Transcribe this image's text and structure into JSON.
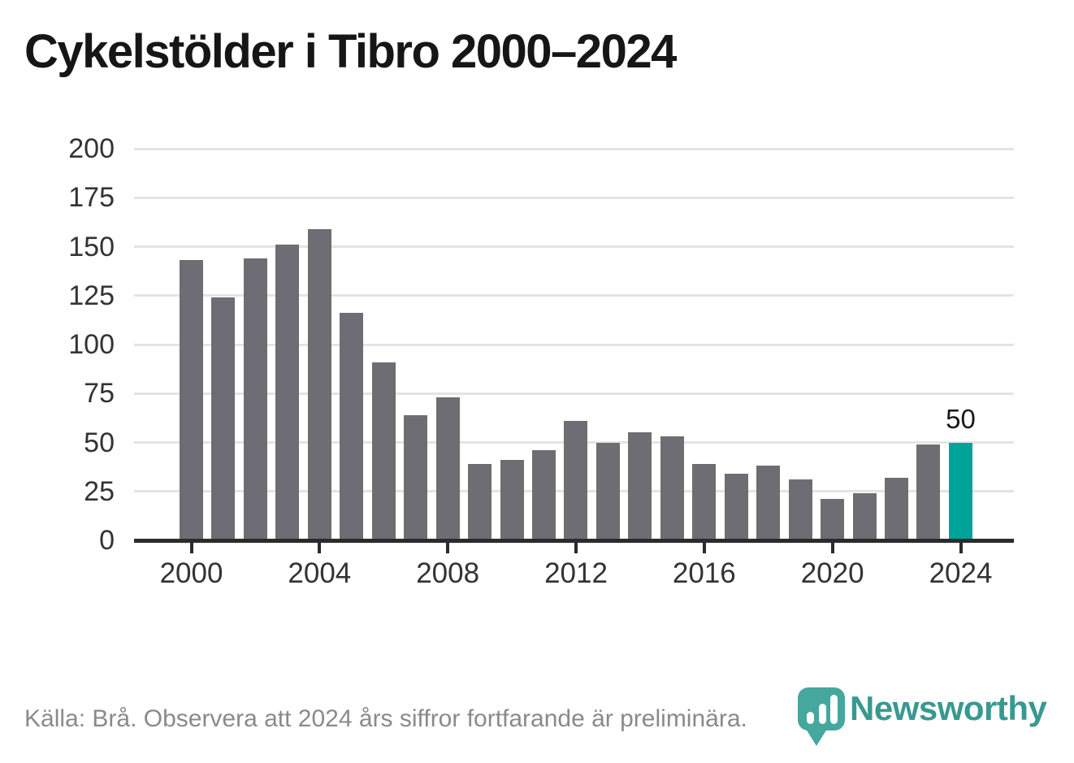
{
  "title": "Cykelstölder i Tibro 2000–2024",
  "footer": {
    "source_text": "Källa: Brå. Observera att 2024 års siffror fortfarande är preliminära."
  },
  "logo": {
    "wordmark": "Newsworthy",
    "badge_color": "#45A79D",
    "wordmark_color": "#38998F"
  },
  "colors": {
    "bar": "#6E6D73",
    "highlight_bar": "#00A39A",
    "axis": "#2B2B2B",
    "gridline": "#E4E4E4",
    "title_text": "#161616",
    "tick_label": "#333333",
    "footer_text": "#8A8A8A"
  },
  "chart_data": {
    "type": "bar",
    "title": "Cykelstölder i Tibro 2000–2024",
    "xlabel": "",
    "ylabel": "",
    "x": [
      2000,
      2001,
      2002,
      2003,
      2004,
      2005,
      2006,
      2007,
      2008,
      2009,
      2010,
      2011,
      2012,
      2013,
      2014,
      2015,
      2016,
      2017,
      2018,
      2019,
      2020,
      2021,
      2022,
      2023,
      2024
    ],
    "values": [
      143,
      124,
      144,
      151,
      159,
      116,
      91,
      64,
      73,
      39,
      41,
      46,
      61,
      50,
      55,
      53,
      39,
      34,
      38,
      31,
      21,
      24,
      32,
      49,
      50
    ],
    "highlight_index": 24,
    "annotation": {
      "index": 24,
      "text": "50"
    },
    "ylim": [
      0,
      200
    ],
    "y_ticks": [
      0,
      25,
      50,
      75,
      100,
      125,
      150,
      175,
      200
    ],
    "x_tick_indices": [
      0,
      4,
      8,
      12,
      16,
      20,
      24
    ],
    "x_tick_labels": [
      "2000",
      "2004",
      "2008",
      "2012",
      "2016",
      "2020",
      "2024"
    ],
    "grid": true,
    "legend": "none"
  }
}
